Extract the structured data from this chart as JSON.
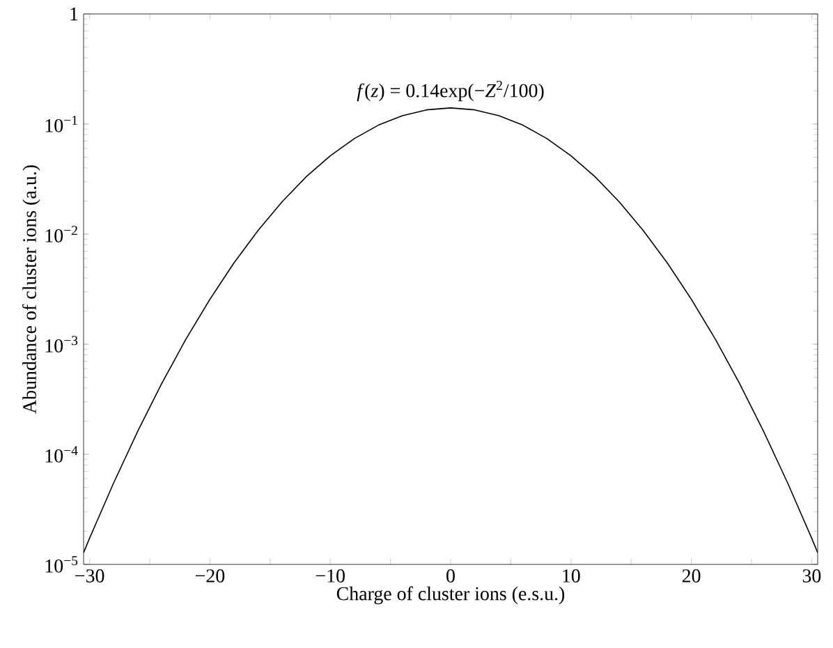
{
  "chart_data": {
    "type": "line",
    "xlabel": "Charge of cluster ions (e.s.u.)",
    "ylabel": "Abundance of cluster ions (a.u.)",
    "annotations": [
      "*f*(*z*) = 0.14exp(−*Z*$^{2}$/100)"
    ],
    "log": "y",
    "xlim": [
      -30.5,
      30.5
    ],
    "ylim": [
      1e-05,
      1
    ],
    "xticks": [
      {
        "value": -30,
        "label": "−30"
      },
      {
        "value": -25,
        "label": null
      },
      {
        "value": -20,
        "label": "−20"
      },
      {
        "value": -15,
        "label": null
      },
      {
        "value": -10,
        "label": "−10"
      },
      {
        "value": -5,
        "label": null
      },
      0,
      {
        "value": 5,
        "label": null
      },
      10,
      {
        "value": 15,
        "label": null
      },
      20,
      {
        "value": 25,
        "label": null
      },
      30
    ],
    "yticks": [
      {
        "value": 1e-05,
        "label": "10$^{−5}$"
      },
      {
        "value": 0.0001,
        "label": "10$^{−4}$"
      },
      {
        "value": 0.001,
        "label": "10$^{−3}$"
      },
      {
        "value": 0.01,
        "label": "10$^{−2}$"
      },
      {
        "value": 0.1,
        "label": "10$^{−1}$"
      },
      1
    ],
    "series": [
      {
        "color": "#000000",
        "x": [
          -30.5,
          -30,
          -28,
          -26,
          -24,
          -22,
          -20,
          -18,
          -16,
          -14,
          -12,
          -10,
          -8,
          -6,
          -4,
          -2,
          0,
          2,
          4,
          6,
          8,
          10,
          12,
          14,
          16,
          18,
          20,
          22,
          24,
          26,
          28,
          30,
          30.5
        ],
        "values": [
          1.28e-05,
          1.73e-05,
          5.5e-05,
          0.000162,
          0.000442,
          0.00111,
          0.00256,
          0.00548,
          0.0108,
          0.0197,
          0.0332,
          0.0515,
          0.0738,
          0.0977,
          0.119,
          0.1345,
          0.14,
          0.1345,
          0.119,
          0.0977,
          0.0738,
          0.0515,
          0.0332,
          0.0197,
          0.0108,
          0.00548,
          0.00256,
          0.00111,
          0.000442,
          0.000162,
          5.5e-05,
          1.73e-05,
          1.28e-05
        ]
      }
    ]
  }
}
